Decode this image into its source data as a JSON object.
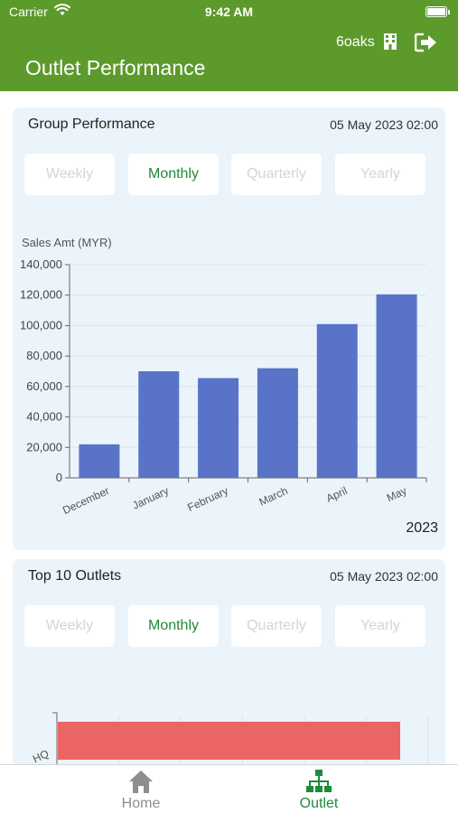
{
  "status_bar": {
    "carrier": "Carrier",
    "time": "9:42 AM"
  },
  "header": {
    "title": "Outlet Performance",
    "org_name": "6oaks",
    "icons": [
      "building-icon",
      "logout-icon"
    ]
  },
  "group_performance": {
    "title": "Group Performance",
    "date": "05 May 2023 02:00",
    "tabs": [
      {
        "label": "Weekly",
        "active": false
      },
      {
        "label": "Monthly",
        "active": true
      },
      {
        "label": "Quarterly",
        "active": false
      },
      {
        "label": "Yearly",
        "active": false
      }
    ],
    "year_label": "2023"
  },
  "top_outlets": {
    "title": "Top 10 Outlets",
    "date": "05 May 2023 02:00",
    "tabs": [
      {
        "label": "Weekly",
        "active": false
      },
      {
        "label": "Monthly",
        "active": true
      },
      {
        "label": "Quarterly",
        "active": false
      },
      {
        "label": "Yearly",
        "active": false
      }
    ]
  },
  "chart_data": [
    {
      "type": "bar",
      "ylabel": "Sales Amt (MYR)",
      "categories": [
        "December",
        "January",
        "February",
        "March",
        "April",
        "May"
      ],
      "values": [
        22000,
        70000,
        65500,
        72000,
        101000,
        120500
      ],
      "ylim": [
        0,
        140000
      ],
      "yticks": [
        "0",
        "20,000",
        "40,000",
        "60,000",
        "80,000",
        "100,000",
        "120,000",
        "140,000"
      ],
      "bar_color": "#5873c8",
      "grid": true
    },
    {
      "type": "bar",
      "orientation": "horizontal",
      "categories": [
        "HQ"
      ],
      "values": [
        0.85
      ],
      "bar_color": "#ec6565",
      "grid": true
    }
  ],
  "bottom_nav": {
    "items": [
      {
        "label": "Home",
        "icon": "home-icon",
        "active": false
      },
      {
        "label": "Outlet",
        "icon": "sitemap-icon",
        "active": true
      }
    ]
  },
  "colors": {
    "brand_green": "#5d9a2c",
    "active_green": "#1f8a3a",
    "card_bg": "#eaf4fa"
  }
}
